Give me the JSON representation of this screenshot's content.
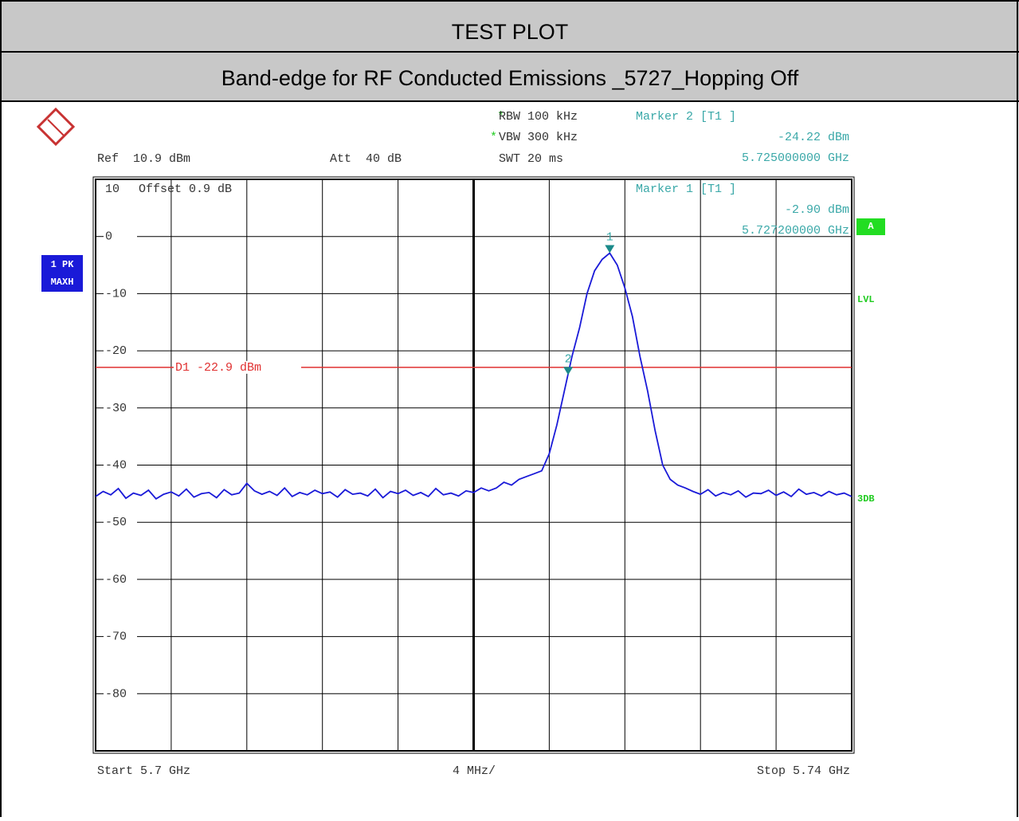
{
  "header": {
    "title": "TEST   PLOT",
    "subtitle": "Band-edge for RF Conducted Emissions _5727_Hopping Off"
  },
  "chart_data": {
    "type": "line",
    "settings": {
      "rbw": {
        "flag": "*",
        "text": "RBW 100 kHz"
      },
      "vbw": {
        "flag": "*",
        "text": "VBW 300 kHz"
      },
      "swt": "SWT 20 ms",
      "ref": "Ref  10.9 dBm",
      "att": "Att  40 dB",
      "offset": "Offset  0.9 dB",
      "start": "Start 5.7 GHz",
      "span_div": "4 MHz/",
      "stop": "Stop 5.74 GHz"
    },
    "trace_label": [
      "1 PK",
      "MAXH"
    ],
    "side_labels": {
      "a": "A",
      "lvl": "LVL",
      "db": "3DB"
    },
    "xlim": [
      5.7,
      5.74
    ],
    "ylim": [
      -90,
      10
    ],
    "yticks": [
      10,
      0,
      -10,
      -20,
      -30,
      -40,
      -50,
      -60,
      -70,
      -80
    ],
    "grid": true,
    "display_line": {
      "label": "D1 -22.9 dBm",
      "value": -22.9,
      "color": "#e03030"
    },
    "markers": [
      {
        "title": "Marker 1 [T1 ]",
        "number": "1",
        "x": 5.7272,
        "x_label": "5.727200000 GHz",
        "value": -2.9,
        "value_label": "-2.90 dBm"
      },
      {
        "title": "Marker 2 [T1 ]",
        "number": "2",
        "x": 5.725,
        "x_label": "5.725000000 GHz",
        "value": -24.22,
        "value_label": "-24.22 dBm"
      }
    ],
    "series": [
      {
        "color": "#1a1ad8",
        "x": [
          5.7,
          5.7004,
          5.7008,
          5.7012,
          5.7016,
          5.702,
          5.7024,
          5.7028,
          5.7032,
          5.7036,
          5.704,
          5.7044,
          5.7048,
          5.7052,
          5.7056,
          5.706,
          5.7064,
          5.7068,
          5.7072,
          5.7076,
          5.708,
          5.7084,
          5.7088,
          5.7092,
          5.7096,
          5.71,
          5.7104,
          5.7108,
          5.7112,
          5.7116,
          5.712,
          5.7124,
          5.7128,
          5.7132,
          5.7136,
          5.714,
          5.7144,
          5.7148,
          5.7152,
          5.7156,
          5.716,
          5.7164,
          5.7168,
          5.7172,
          5.7176,
          5.718,
          5.7184,
          5.7188,
          5.7192,
          5.7196,
          5.72,
          5.7204,
          5.7208,
          5.7212,
          5.7216,
          5.722,
          5.7224,
          5.7228,
          5.7232,
          5.7236,
          5.724,
          5.7244,
          5.7248,
          5.7252,
          5.7256,
          5.726,
          5.7264,
          5.7268,
          5.7272,
          5.7276,
          5.728,
          5.7284,
          5.7288,
          5.7292,
          5.7296,
          5.73,
          5.7304,
          5.7308,
          5.7312,
          5.7316,
          5.732,
          5.7324,
          5.7328,
          5.7332,
          5.7336,
          5.734,
          5.7344,
          5.7348,
          5.7352,
          5.7356,
          5.736,
          5.7364,
          5.7368,
          5.7372,
          5.7376,
          5.738,
          5.7384,
          5.7388,
          5.7392,
          5.7396,
          5.74
        ],
        "values": [
          -45.5,
          -44.6,
          -45.2,
          -44.1,
          -45.8,
          -44.9,
          -45.3,
          -44.4,
          -45.9,
          -45.1,
          -44.7,
          -45.4,
          -44.2,
          -45.6,
          -45.0,
          -44.8,
          -45.7,
          -44.3,
          -45.2,
          -44.9,
          -43.2,
          -44.5,
          -45.1,
          -44.6,
          -45.3,
          -44.0,
          -45.5,
          -44.8,
          -45.2,
          -44.4,
          -45.0,
          -44.7,
          -45.6,
          -44.3,
          -45.1,
          -44.9,
          -45.4,
          -44.2,
          -45.7,
          -44.6,
          -45.0,
          -44.4,
          -45.3,
          -44.8,
          -45.5,
          -44.1,
          -45.2,
          -44.9,
          -45.4,
          -44.5,
          -44.8,
          -44,
          -44.5,
          -44,
          -43,
          -43.5,
          -42.5,
          -42,
          -41.5,
          -41,
          -38,
          -33,
          -27,
          -21,
          -16,
          -10,
          -6,
          -4,
          -2.9,
          -5,
          -9,
          -14,
          -21,
          -27,
          -34,
          -40,
          -42.5,
          -43.5,
          -44,
          -44.6,
          -45.1,
          -44.3,
          -45.4,
          -44.8,
          -45.2,
          -44.5,
          -45.6,
          -44.9,
          -45.0,
          -44.4,
          -45.3,
          -44.7,
          -45.5,
          -44.2,
          -45.1,
          -44.8,
          -45.4,
          -44.6,
          -45.2,
          -44.9,
          -45.5
        ]
      }
    ]
  }
}
